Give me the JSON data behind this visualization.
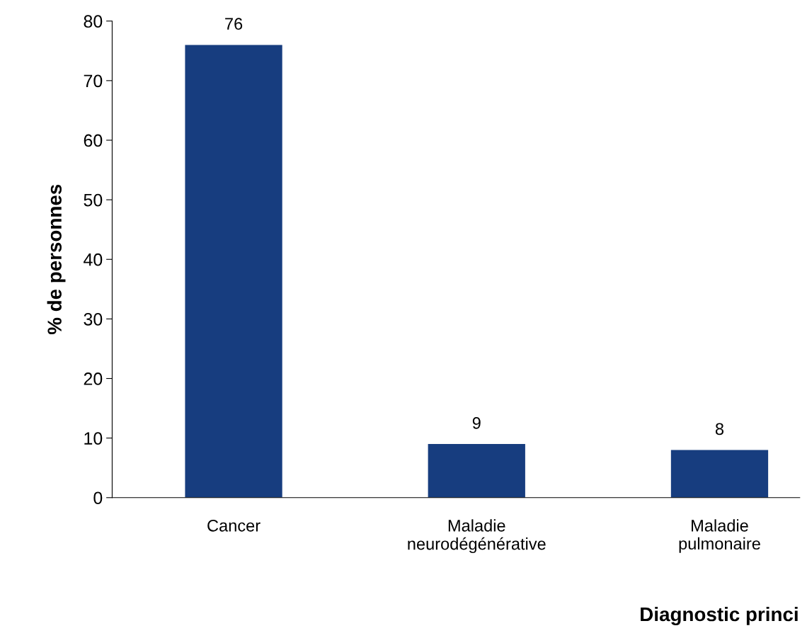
{
  "chart_data": {
    "type": "bar",
    "xlabel": "Diagnostic princi",
    "ylabel": "% de personnes",
    "categories": [
      "Cancer",
      "Maladie\nneurodégénérative",
      "Maladie\npulmonaire"
    ],
    "values": [
      76,
      9,
      8
    ],
    "color": "#173d7f",
    "ylim": [
      0,
      80
    ],
    "yticks": [
      0,
      10,
      20,
      30,
      40,
      50,
      60,
      70,
      80
    ],
    "data_labels": true,
    "grid": false,
    "legend": false
  }
}
